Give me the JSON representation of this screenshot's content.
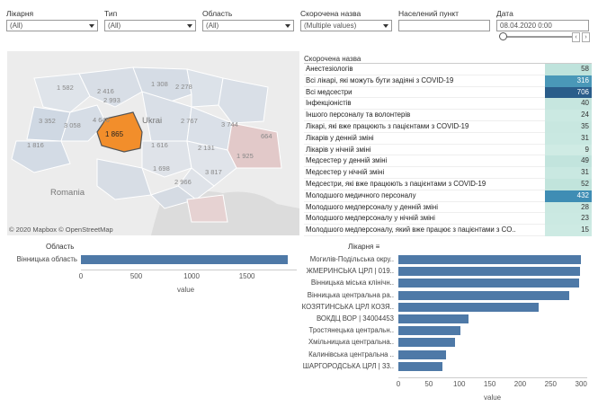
{
  "filters": [
    {
      "id": "hospital",
      "label": "Лікарня",
      "value": "(All)",
      "x": 7,
      "w": 102
    },
    {
      "id": "type",
      "label": "Тип",
      "value": "(All)",
      "x": 116,
      "w": 102
    },
    {
      "id": "region",
      "label": "Область",
      "value": "(All)",
      "x": 225,
      "w": 102
    },
    {
      "id": "short-name",
      "label": "Скорочена назва",
      "value": "(Multiple values)",
      "x": 334,
      "w": 102
    },
    {
      "id": "settlement",
      "label": "Населений пункт",
      "value": "",
      "x": 443,
      "w": 102
    }
  ],
  "date_filter": {
    "label": "Дата",
    "value": "08.04.2020 0:00"
  },
  "map": {
    "highlighted_value": "1 865",
    "country_label": "Romania",
    "country_label_2": "Ukrai",
    "attribution": "© 2020 Mapbox © OpenStreetMap",
    "region_labels": [
      "1 582",
      "2 416",
      "1 308",
      "2 278",
      "2 993",
      "3 352",
      "3 058",
      "4 646",
      "2 767",
      "3 744",
      "1 816",
      "1 616",
      "2 131",
      "664",
      "1 698",
      "3 817",
      "1 925",
      "2 966"
    ]
  },
  "table": {
    "header": "Скорочена назва",
    "rows": [
      {
        "name": "Анестезіологів",
        "value": "58",
        "color": "#bfe3dc",
        "text": "#333"
      },
      {
        "name": "Всі лікарі, які можуть бути задіяні з COVID-19",
        "value": "316",
        "color": "#4a98b8",
        "text": "#fff"
      },
      {
        "name": "Всі медсестри",
        "value": "706",
        "color": "#2a5d8a",
        "text": "#fff"
      },
      {
        "name": "Інфекціоністів",
        "value": "40",
        "color": "#c6e6df",
        "text": "#333"
      },
      {
        "name": "Іншого персоналу та волонтерів",
        "value": "24",
        "color": "#cbe9e2",
        "text": "#333"
      },
      {
        "name": "Лікарі, які вже працюють з пацієнтами з COVID-19",
        "value": "35",
        "color": "#c8e7e0",
        "text": "#333"
      },
      {
        "name": "Лікарів у денній зміні",
        "value": "31",
        "color": "#c9e8e1",
        "text": "#333"
      },
      {
        "name": "Лікарів у нічній зміні",
        "value": "9",
        "color": "#cfebe4",
        "text": "#333"
      },
      {
        "name": "Медсестер у денній зміні",
        "value": "49",
        "color": "#c2e4dd",
        "text": "#333"
      },
      {
        "name": "Медсестер у нічній зміні",
        "value": "31",
        "color": "#c9e8e1",
        "text": "#333"
      },
      {
        "name": "Медсестри, які вже працюють з пацієнтами з COVID-19",
        "value": "52",
        "color": "#c1e4dc",
        "text": "#333"
      },
      {
        "name": "Молодшого медичного персоналу",
        "value": "432",
        "color": "#3f8db4",
        "text": "#fff"
      },
      {
        "name": "Молодшого медперсоналу у денній зміні",
        "value": "28",
        "color": "#cae8e1",
        "text": "#333"
      },
      {
        "name": "Молодшого медперсоналу у нічній зміні",
        "value": "23",
        "color": "#cbe9e2",
        "text": "#333"
      },
      {
        "name": "Молодшого медперсоналу, який вже працює з пацієнтами з CO..",
        "value": "15",
        "color": "#cdeae3",
        "text": "#333"
      }
    ]
  },
  "chart_data": [
    {
      "type": "bar",
      "orientation": "horizontal",
      "title": "Область",
      "categories": [
        "Вінницька область"
      ],
      "values": [
        1865
      ],
      "xlabel": "value",
      "xlim": [
        0,
        1950
      ],
      "xticks": [
        0,
        500,
        1000,
        1500
      ],
      "color": "#4e79a7"
    },
    {
      "type": "bar",
      "orientation": "horizontal",
      "title": "Лікарня",
      "categories": [
        "Могилів-Подільська окру..",
        "ЖМЕРИНСЬКА ЦРЛ | 019..",
        "Вінницька міська клінічн..",
        "Вінницька центральна ра..",
        "КОЗЯТИНСЬКА ЦРЛ КОЗЯ..",
        "ВОКДЦ ВОР | 34004453",
        "Тростянецька центральн..",
        "Хмільницька центральна..",
        "Калинівська центральна ..",
        "ШАРГОРОДСЬКА ЦРЛ | 33.."
      ],
      "values": [
        300,
        298,
        296,
        280,
        230,
        115,
        102,
        93,
        78,
        73
      ],
      "xlabel": "value",
      "xlim": [
        0,
        310
      ],
      "xticks": [
        0,
        50,
        100,
        150,
        200,
        250,
        300
      ],
      "color": "#4e79a7"
    }
  ]
}
